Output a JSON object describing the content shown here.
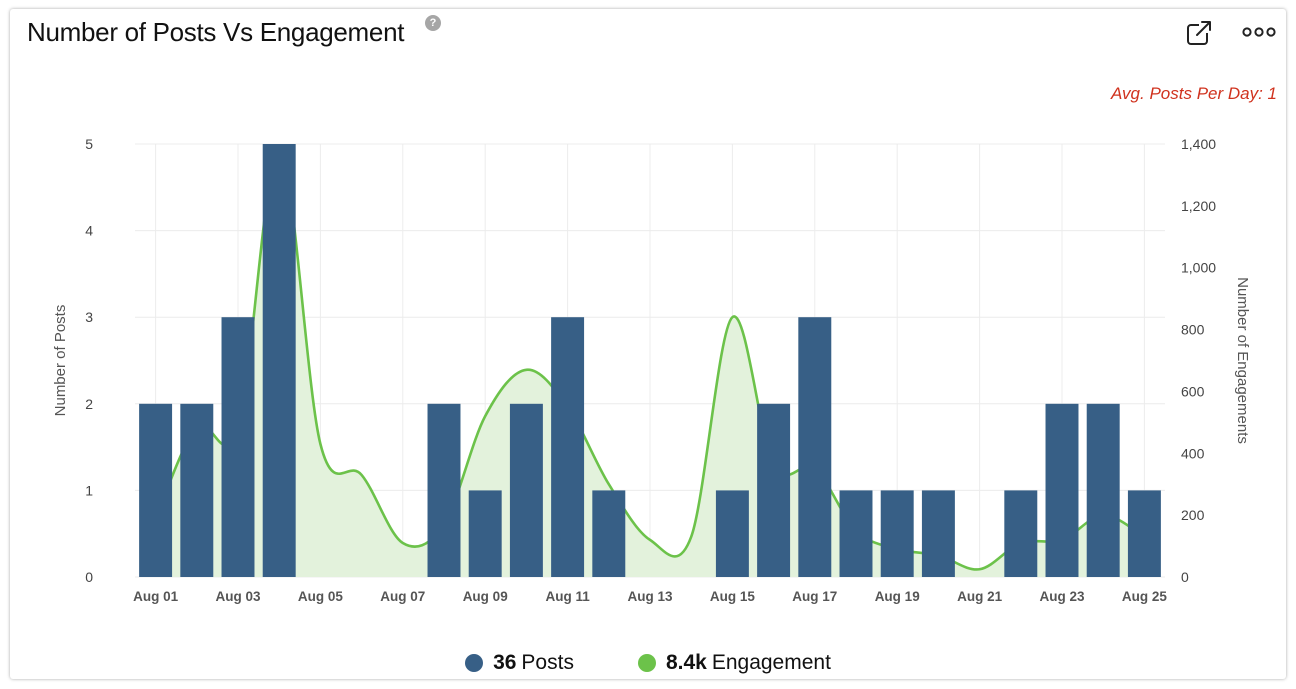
{
  "widget": {
    "title": "Number of Posts Vs Engagement",
    "help_icon": "question-circle-icon",
    "help_glyph": "?",
    "export_icon": "external-link-icon",
    "more_icon": "more-horizontal-icon",
    "avg_note": "Avg. Posts Per Day: 1"
  },
  "colors": {
    "posts": "#375f86",
    "engagement_line": "#6cc24a",
    "engagement_fill": "#e3f2dc",
    "avg_note": "#d0321e"
  },
  "legend": [
    {
      "total": "36",
      "label": "Posts",
      "color": "#375f86"
    },
    {
      "total": "8.4k",
      "label": "Engagement",
      "color": "#6cc24a"
    }
  ],
  "chart_data": {
    "type": "bar",
    "xlabel": "",
    "categories": [
      "Aug 01",
      "Aug 02",
      "Aug 03",
      "Aug 04",
      "Aug 05",
      "Aug 06",
      "Aug 07",
      "Aug 08",
      "Aug 09",
      "Aug 10",
      "Aug 11",
      "Aug 12",
      "Aug 13",
      "Aug 14",
      "Aug 15",
      "Aug 16",
      "Aug 17",
      "Aug 18",
      "Aug 19",
      "Aug 20",
      "Aug 21",
      "Aug 22",
      "Aug 23",
      "Aug 24",
      "Aug 25"
    ],
    "x_tick_labels": [
      "Aug 01",
      "Aug 03",
      "Aug 05",
      "Aug 07",
      "Aug 09",
      "Aug 11",
      "Aug 13",
      "Aug 15",
      "Aug 17",
      "Aug 19",
      "Aug 21",
      "Aug 23",
      "Aug 25"
    ],
    "series": [
      {
        "name": "Posts",
        "type": "bar",
        "axis": "left",
        "values": [
          2,
          2,
          3,
          5,
          0,
          0,
          0,
          2,
          1,
          2,
          3,
          1,
          0,
          0,
          1,
          2,
          3,
          1,
          1,
          1,
          0,
          1,
          2,
          2,
          1
        ]
      },
      {
        "name": "Engagement",
        "type": "area",
        "axis": "right",
        "values": [
          190,
          485,
          480,
          1380,
          430,
          330,
          110,
          170,
          520,
          670,
          550,
          300,
          120,
          130,
          840,
          360,
          350,
          150,
          90,
          70,
          25,
          110,
          120,
          200,
          130
        ]
      }
    ],
    "y_left": {
      "label": "Number of Posts",
      "lim": [
        0,
        5
      ],
      "ticks": [
        0,
        1,
        2,
        3,
        4,
        5
      ]
    },
    "y_right": {
      "label": "Number of Engagements",
      "lim": [
        0,
        1400
      ],
      "ticks": [
        0,
        200,
        400,
        600,
        800,
        1000,
        1200,
        1400
      ],
      "tick_labels": [
        "0",
        "200",
        "400",
        "600",
        "800",
        "1,000",
        "1,200",
        "1,400"
      ]
    },
    "grid": true,
    "legend_position": "bottom"
  }
}
